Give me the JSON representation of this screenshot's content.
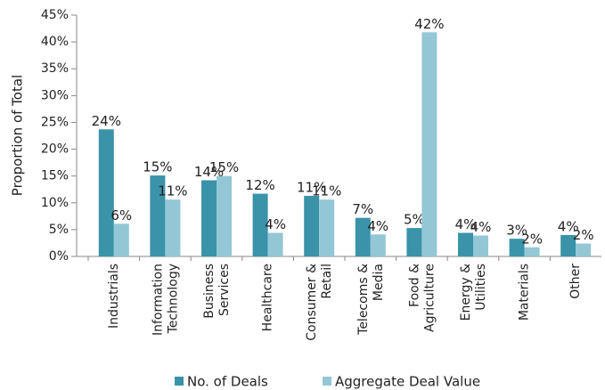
{
  "chart_data": {
    "type": "bar",
    "y_label": "Proportion of Total",
    "categories": [
      "Industrials",
      "Information Technology",
      "Business Services",
      "Healthcare",
      "Consumer & Retail",
      "Telecoms & Media",
      "Food & Agriculture",
      "Energy & Utilities",
      "Materials",
      "Other"
    ],
    "series": [
      {
        "name": "No. of Deals",
        "color": "#3a93a8",
        "values": [
          23.7,
          15.1,
          14.2,
          11.7,
          11.3,
          7.2,
          5.3,
          4.4,
          3.3,
          4.0
        ],
        "value_labels": [
          "24%",
          "15%",
          "14%",
          "12%",
          "11%",
          "7%",
          "5%",
          "4%",
          "3%",
          "4%"
        ]
      },
      {
        "name": "Aggregate Deal Value",
        "color": "#93c7d6",
        "values": [
          6.1,
          10.6,
          15.0,
          4.4,
          10.6,
          4.1,
          41.8,
          3.9,
          1.7,
          2.4
        ],
        "value_labels": [
          "6%",
          "11%",
          "15%",
          "4%",
          "11%",
          "4%",
          "42%",
          "4%",
          "2%",
          "2%"
        ]
      }
    ],
    "ylim": [
      0,
      45
    ],
    "yticks": [
      {
        "value": 0,
        "label": "0%"
      },
      {
        "value": 5,
        "label": "5%"
      },
      {
        "value": 10,
        "label": "10%"
      },
      {
        "value": 15,
        "label": "15%"
      },
      {
        "value": 20,
        "label": "20%"
      },
      {
        "value": 25,
        "label": "25%"
      },
      {
        "value": 30,
        "label": "30%"
      },
      {
        "value": 35,
        "label": "35%"
      },
      {
        "value": 40,
        "label": "40%"
      },
      {
        "value": 45,
        "label": "45%"
      }
    ],
    "legend": "bottom"
  }
}
